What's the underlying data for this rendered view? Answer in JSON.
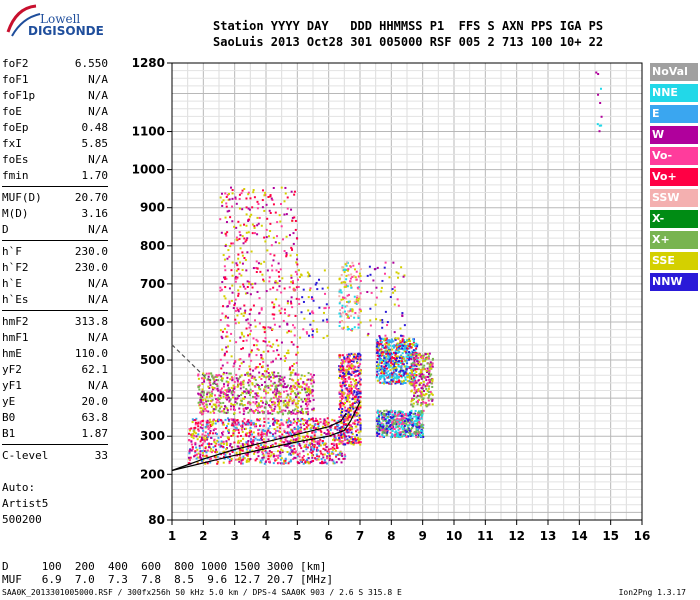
{
  "logo": {
    "line1": "Lowell",
    "line2": "DIGISONDE"
  },
  "header": {
    "line1": "Station YYYY DAY   DDD HHMMSS P1  FFS S AXN PPS IGA PS",
    "line2": "SaoLuis 2013 Oct28 301 005000 RSF 005 2 713 100 10+ 22"
  },
  "params": {
    "group1": [
      {
        "k": "foF2",
        "v": "6.550"
      },
      {
        "k": "foF1",
        "v": "N/A"
      },
      {
        "k": "foF1p",
        "v": "N/A"
      },
      {
        "k": "foE",
        "v": "N/A"
      },
      {
        "k": "foEp",
        "v": "0.48"
      },
      {
        "k": "fxI",
        "v": "5.85"
      },
      {
        "k": "foEs",
        "v": "N/A"
      },
      {
        "k": "fmin",
        "v": "1.70"
      }
    ],
    "group2": [
      {
        "k": "MUF(D)",
        "v": "20.70"
      },
      {
        "k": "M(D)",
        "v": "3.16"
      },
      {
        "k": "D",
        "v": "N/A"
      }
    ],
    "group3": [
      {
        "k": "h`F",
        "v": "230.0"
      },
      {
        "k": "h`F2",
        "v": "230.0"
      },
      {
        "k": "h`E",
        "v": "N/A"
      },
      {
        "k": "h`Es",
        "v": "N/A"
      }
    ],
    "group4": [
      {
        "k": "hmF2",
        "v": "313.8"
      },
      {
        "k": "hmF1",
        "v": "N/A"
      },
      {
        "k": "hmE",
        "v": "110.0"
      },
      {
        "k": "yF2",
        "v": "62.1"
      },
      {
        "k": "yF1",
        "v": "N/A"
      },
      {
        "k": "yE",
        "v": "20.0"
      },
      {
        "k": "B0",
        "v": "63.8"
      },
      {
        "k": "B1",
        "v": "1.87"
      }
    ],
    "group5": [
      {
        "k": "C-level",
        "v": "33"
      }
    ]
  },
  "auto": {
    "l1": "Auto:",
    "l2": "Artist5",
    "l3": "500200"
  },
  "muf_table": {
    "d_row": "D     100  200  400  600  800 1000 1500 3000 [km]",
    "muf_row": "MUF   6.9  7.0  7.3  7.8  8.5  9.6 12.7 20.7 [MHz]"
  },
  "footer": {
    "left": "SAA0K_2013301005000.RSF / 300fx256h 50 kHz 5.0 km / DPS-4 SAA0K 903 / 2.6 S 315.8 E",
    "right": "Ion2Png 1.3.17"
  },
  "legend": [
    {
      "label": "NoVal",
      "color": "#a0a0a0"
    },
    {
      "label": "NNE",
      "color": "#22d8e8"
    },
    {
      "label": "E",
      "color": "#3aa6f0"
    },
    {
      "label": "W",
      "color": "#b0009c"
    },
    {
      "label": "Vo-",
      "color": "#ff3c9c"
    },
    {
      "label": "Vo+",
      "color": "#ff0044"
    },
    {
      "label": "SSW",
      "color": "#f4b0b0"
    },
    {
      "label": "X-",
      "color": "#008c14"
    },
    {
      "label": "X+",
      "color": "#78b450"
    },
    {
      "label": "SSE",
      "color": "#d4d000"
    },
    {
      "label": "NNW",
      "color": "#2a1ad8"
    }
  ],
  "chart_data": {
    "type": "scatter",
    "xlim": [
      1,
      16
    ],
    "ylim": [
      80,
      1280
    ],
    "x_ticks": [
      "1",
      "2",
      "3",
      "4",
      "5",
      "6",
      "7",
      "8",
      "9",
      "10",
      "11",
      "12",
      "13",
      "14",
      "15",
      "16"
    ],
    "y_ticks": [
      {
        "value": 80,
        "label": "80"
      },
      {
        "value": 200,
        "label": "200"
      },
      {
        "value": 300,
        "label": "300"
      },
      {
        "value": 400,
        "label": "400"
      },
      {
        "value": 500,
        "label": "500"
      },
      {
        "value": 600,
        "label": "600"
      },
      {
        "value": 700,
        "label": "700"
      },
      {
        "value": 800,
        "label": "800"
      },
      {
        "value": 900,
        "label": "900"
      },
      {
        "value": 1000,
        "label": "1000"
      },
      {
        "value": 1100,
        "label": "1100"
      },
      {
        "value": 1280,
        "label": "1280"
      }
    ],
    "grid": true,
    "traces": [
      {
        "name": "o-trace",
        "color": "#000000",
        "points": [
          [
            1,
            210
          ],
          [
            2,
            240
          ],
          [
            3,
            265
          ],
          [
            4,
            285
          ],
          [
            5,
            305
          ],
          [
            6,
            325
          ],
          [
            6.4,
            340
          ],
          [
            6.55,
            360
          ]
        ]
      },
      {
        "name": "profile",
        "color": "#000000",
        "points": [
          [
            1,
            210
          ],
          [
            3,
            250
          ],
          [
            5,
            285
          ],
          [
            6,
            300
          ],
          [
            6.5,
            315
          ],
          [
            6.7,
            340
          ],
          [
            7,
            390
          ]
        ]
      },
      {
        "name": "dashed-extrapolation",
        "color": "#555555",
        "dash": true,
        "points": [
          [
            1,
            540
          ],
          [
            1.5,
            500
          ],
          [
            2,
            460
          ],
          [
            2.5,
            430
          ]
        ]
      }
    ],
    "echo_regions": [
      {
        "name": "F-trace-low",
        "x": [
          1.5,
          6.5
        ],
        "y": [
          230,
          350
        ],
        "density": 1100,
        "colors": [
          "#ff0044",
          "#ff3c9c",
          "#b0009c",
          "#3aa6f0",
          "#d4d000"
        ]
      },
      {
        "name": "F-trace-mid",
        "x": [
          1.8,
          5.5
        ],
        "y": [
          360,
          470
        ],
        "density": 700,
        "colors": [
          "#d4d000",
          "#78b450",
          "#ff3c9c",
          "#b0009c"
        ]
      },
      {
        "name": "spread-high",
        "x": [
          2.5,
          5.0
        ],
        "y": [
          470,
          960
        ],
        "density": 500,
        "colors": [
          "#d4d000",
          "#ff3c9c",
          "#b0009c",
          "#ff0044"
        ]
      },
      {
        "name": "cusp-7MHz",
        "x": [
          6.3,
          7.0
        ],
        "y": [
          280,
          520
        ],
        "density": 500,
        "colors": [
          "#ff0044",
          "#d4d000",
          "#2a1ad8",
          "#ff3c9c"
        ]
      },
      {
        "name": "cusp-upper",
        "x": [
          6.3,
          7.0
        ],
        "y": [
          580,
          760
        ],
        "density": 150,
        "colors": [
          "#f4b0b0",
          "#ff3c9c",
          "#22d8e8",
          "#d4d000"
        ]
      },
      {
        "name": "block-8MHz",
        "x": [
          7.5,
          8.8
        ],
        "y": [
          440,
          560
        ],
        "density": 600,
        "colors": [
          "#2a1ad8",
          "#22d8e8",
          "#d4d000",
          "#ff0044",
          "#3aa6f0"
        ]
      },
      {
        "name": "block-8MHz-low",
        "x": [
          7.5,
          9.0
        ],
        "y": [
          300,
          370
        ],
        "density": 500,
        "colors": [
          "#22d8e8",
          "#78b450",
          "#2a1ad8",
          "#ff3c9c"
        ]
      },
      {
        "name": "block-9MHz",
        "x": [
          8.6,
          9.3
        ],
        "y": [
          380,
          520
        ],
        "density": 250,
        "colors": [
          "#d4d000",
          "#ff3c9c",
          "#b0009c",
          "#78b450"
        ]
      },
      {
        "name": "spread-7-8",
        "x": [
          7.2,
          8.4
        ],
        "y": [
          560,
          760
        ],
        "density": 60,
        "colors": [
          "#b0009c",
          "#ff3c9c",
          "#2a1ad8",
          "#d4d000"
        ]
      },
      {
        "name": "spread-5-6",
        "x": [
          5.0,
          6.0
        ],
        "y": [
          560,
          740
        ],
        "density": 60,
        "colors": [
          "#d4d000",
          "#ff3c9c",
          "#2a1ad8"
        ]
      },
      {
        "name": "near-14.6",
        "x": [
          14.5,
          14.7
        ],
        "y": [
          1100,
          1270
        ],
        "density": 10,
        "colors": [
          "#22d8e8",
          "#b0009c"
        ]
      }
    ]
  }
}
